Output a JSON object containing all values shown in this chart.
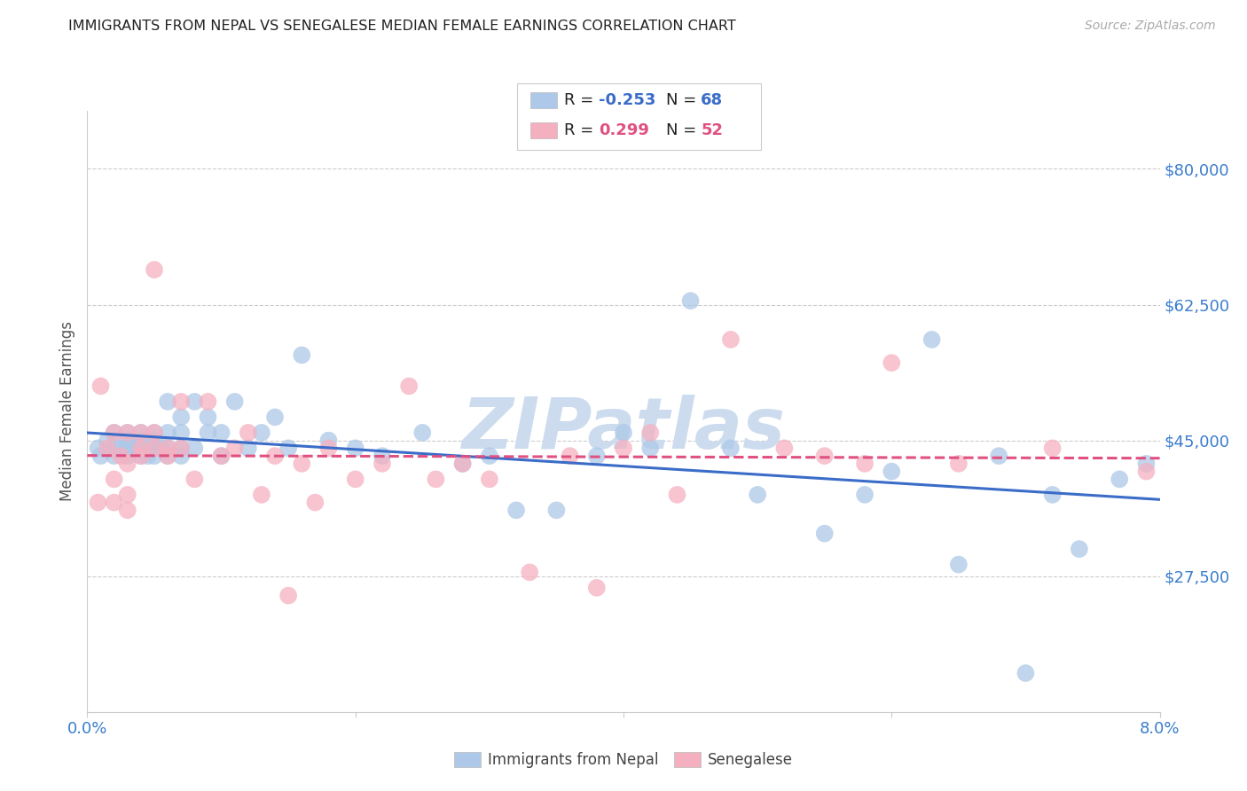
{
  "title": "IMMIGRANTS FROM NEPAL VS SENEGALESE MEDIAN FEMALE EARNINGS CORRELATION CHART",
  "source_text": "Source: ZipAtlas.com",
  "ylabel": "Median Female Earnings",
  "legend_entries": [
    "Immigrants from Nepal",
    "Senegalese"
  ],
  "nepal_R": -0.253,
  "nepal_N": 68,
  "senegal_R": 0.299,
  "senegal_N": 52,
  "xlim": [
    0.0,
    0.08
  ],
  "ylim": [
    10000,
    87500
  ],
  "yticks": [
    27500,
    45000,
    62500,
    80000
  ],
  "xticks": [
    0.0,
    0.02,
    0.04,
    0.06,
    0.08
  ],
  "xtick_labels": [
    "0.0%",
    "",
    "",
    "",
    "8.0%"
  ],
  "ytick_labels": [
    "$27,500",
    "$45,000",
    "$62,500",
    "$80,000"
  ],
  "nepal_color": "#adc8e8",
  "senegal_color": "#f5b0c0",
  "nepal_line_color": "#3a6cc8",
  "senegal_line_color": "#e05080",
  "background_color": "#ffffff",
  "grid_color": "#cccccc",
  "watermark_text": "ZIPatlas",
  "watermark_color": "#ccdcee",
  "title_color": "#222222",
  "axis_label_color": "#555555",
  "tick_label_color": "#3a7dcc",
  "source_color": "#aaaaaa",
  "legend_text_color": "#222222",
  "nepal_x": [
    0.0008,
    0.001,
    0.0015,
    0.002,
    0.002,
    0.002,
    0.0025,
    0.003,
    0.003,
    0.003,
    0.003,
    0.0035,
    0.004,
    0.004,
    0.004,
    0.004,
    0.0045,
    0.005,
    0.005,
    0.005,
    0.005,
    0.005,
    0.0055,
    0.006,
    0.006,
    0.006,
    0.006,
    0.007,
    0.007,
    0.007,
    0.007,
    0.008,
    0.008,
    0.009,
    0.009,
    0.01,
    0.01,
    0.011,
    0.012,
    0.013,
    0.014,
    0.015,
    0.016,
    0.018,
    0.02,
    0.022,
    0.025,
    0.028,
    0.03,
    0.032,
    0.035,
    0.038,
    0.04,
    0.042,
    0.045,
    0.048,
    0.05,
    0.055,
    0.058,
    0.06,
    0.063,
    0.065,
    0.068,
    0.07,
    0.072,
    0.074,
    0.077,
    0.079
  ],
  "nepal_y": [
    44000,
    43000,
    45000,
    43000,
    44000,
    46000,
    44000,
    45000,
    43000,
    44000,
    46000,
    44000,
    46000,
    43000,
    45000,
    44000,
    43000,
    46000,
    44000,
    43000,
    45000,
    44000,
    44000,
    50000,
    46000,
    44000,
    43000,
    48000,
    46000,
    44000,
    43000,
    50000,
    44000,
    46000,
    48000,
    46000,
    43000,
    50000,
    44000,
    46000,
    48000,
    44000,
    56000,
    45000,
    44000,
    43000,
    46000,
    42000,
    43000,
    36000,
    36000,
    43000,
    46000,
    44000,
    63000,
    44000,
    38000,
    33000,
    38000,
    41000,
    58000,
    29000,
    43000,
    15000,
    38000,
    31000,
    40000,
    42000
  ],
  "senegal_x": [
    0.0008,
    0.001,
    0.0015,
    0.002,
    0.002,
    0.002,
    0.0025,
    0.003,
    0.003,
    0.003,
    0.003,
    0.004,
    0.004,
    0.004,
    0.005,
    0.005,
    0.005,
    0.006,
    0.006,
    0.007,
    0.007,
    0.008,
    0.009,
    0.01,
    0.011,
    0.012,
    0.013,
    0.014,
    0.015,
    0.016,
    0.017,
    0.018,
    0.02,
    0.022,
    0.024,
    0.026,
    0.028,
    0.03,
    0.033,
    0.036,
    0.038,
    0.04,
    0.042,
    0.044,
    0.048,
    0.052,
    0.055,
    0.058,
    0.06,
    0.065,
    0.072,
    0.079
  ],
  "senegal_y": [
    37000,
    52000,
    44000,
    46000,
    37000,
    40000,
    43000,
    46000,
    38000,
    36000,
    42000,
    46000,
    43000,
    44000,
    67000,
    44000,
    46000,
    43000,
    44000,
    50000,
    44000,
    40000,
    50000,
    43000,
    44000,
    46000,
    38000,
    43000,
    25000,
    42000,
    37000,
    44000,
    40000,
    42000,
    52000,
    40000,
    42000,
    40000,
    28000,
    43000,
    26000,
    44000,
    46000,
    38000,
    58000,
    44000,
    43000,
    42000,
    55000,
    42000,
    44000,
    41000
  ]
}
